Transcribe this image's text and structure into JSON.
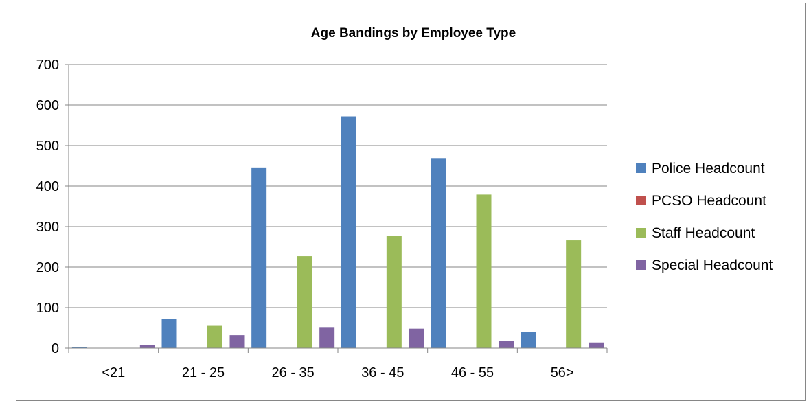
{
  "chart_data": {
    "type": "bar",
    "title": "Age Bandings by Employee Type",
    "xlabel": "",
    "ylabel": "",
    "categories": [
      "<21",
      "21 - 25",
      "26 - 35",
      "36 - 45",
      "46 - 55",
      "56>"
    ],
    "yticks": [
      "0",
      "100",
      "200",
      "300",
      "400",
      "500",
      "600",
      "700"
    ],
    "ylim": [
      0,
      700
    ],
    "grid": true,
    "legend_position": "right",
    "series": [
      {
        "name": "Police Headcount",
        "color": "#4F81BD",
        "values": [
          2,
          72,
          446,
          572,
          469,
          40
        ]
      },
      {
        "name": "PCSO Headcount",
        "color": "#C0504D",
        "values": [
          0,
          0,
          0,
          0,
          0,
          0
        ]
      },
      {
        "name": "Staff Headcount",
        "color": "#9BBB59",
        "values": [
          0,
          55,
          227,
          277,
          379,
          266
        ]
      },
      {
        "name": "Special Headcount",
        "color": "#8064A2",
        "values": [
          7,
          32,
          52,
          48,
          18,
          14
        ]
      }
    ]
  }
}
